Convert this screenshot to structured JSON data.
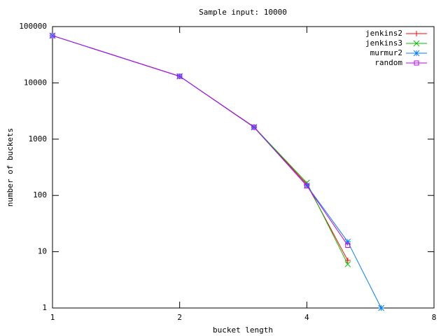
{
  "chart_data": {
    "type": "line",
    "title": "Sample input: 10000",
    "x_label": "bucket length",
    "y_label": "number of buckets",
    "x": [
      1,
      2,
      3,
      4,
      5,
      6
    ],
    "series": [
      {
        "name": "jenkins2",
        "color": "#ff0000",
        "marker": "plus",
        "values": [
          69000,
          13100,
          1650,
          158,
          7,
          null
        ]
      },
      {
        "name": "jenkins3",
        "color": "#00c000",
        "marker": "cross",
        "values": [
          69000,
          13100,
          1640,
          168,
          6,
          null
        ]
      },
      {
        "name": "murmur2",
        "color": "#0080ff",
        "marker": "star",
        "values": [
          69000,
          13100,
          1620,
          150,
          15,
          1
        ]
      },
      {
        "name": "random",
        "color": "#c000ff",
        "marker": "square",
        "values": [
          69000,
          13100,
          1630,
          148,
          13,
          null
        ]
      }
    ],
    "xlim": [
      1,
      8
    ],
    "xticks": [
      1,
      2,
      4,
      8
    ],
    "x_log_base": 2,
    "ylim": [
      1,
      100000
    ],
    "yticks": [
      1,
      10,
      100,
      1000,
      10000,
      100000
    ],
    "y_log_base": 10,
    "legend": "top-right"
  }
}
